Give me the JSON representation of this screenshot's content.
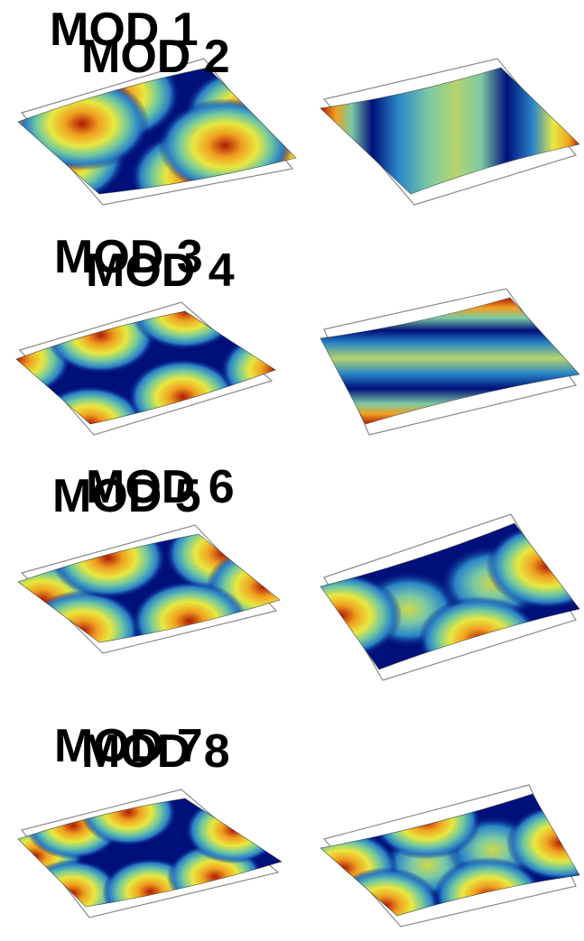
{
  "modes": [
    {
      "title": "MOD 1",
      "pattern": "corners",
      "nx": 2,
      "ny": 2
    },
    {
      "title": "MOD 2",
      "pattern": "bands-x",
      "nx": 3,
      "ny": 1
    },
    {
      "title": "MOD 3",
      "pattern": "corners-mid",
      "nx": 3,
      "ny": 2
    },
    {
      "title": "MOD 4",
      "pattern": "bands-y",
      "nx": 1,
      "ny": 3
    },
    {
      "title": "MOD 5",
      "pattern": "x-cross",
      "nx": 3,
      "ny": 1
    },
    {
      "title": "MOD 6",
      "pattern": "two-lobes",
      "nx": 2,
      "ny": 1
    },
    {
      "title": "MOD 7",
      "pattern": "grid-3x2",
      "nx": 3,
      "ny": 2
    },
    {
      "title": "MOD 8",
      "pattern": "grid-lobes",
      "nx": 3,
      "ny": 2
    }
  ],
  "colors": {
    "low": "#00107a",
    "mid": "#6fc8a8",
    "high": "#b01a05"
  }
}
